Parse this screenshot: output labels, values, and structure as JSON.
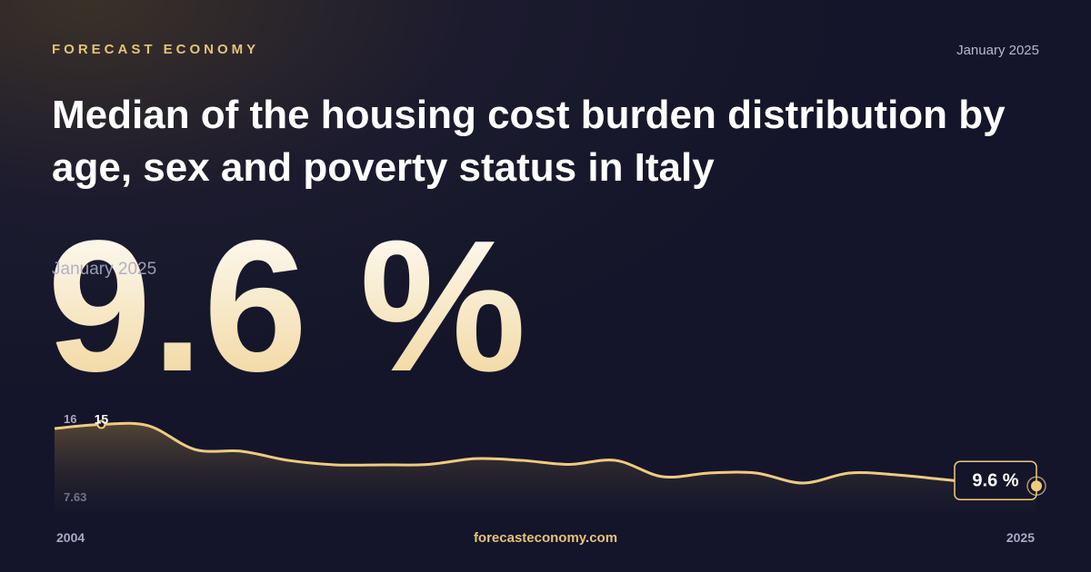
{
  "brand": "FORECAST ECONOMY",
  "date": "January 2025",
  "headline": "9.6 %",
  "footer": "forecasteconomy.com",
  "chart_data": {
    "type": "area",
    "title": "Median of the housing cost burden distribution by age, sex and poverty status in Italy",
    "x": [
      2004,
      2005,
      2006,
      2007,
      2008,
      2009,
      2010,
      2011,
      2012,
      2013,
      2014,
      2015,
      2016,
      2017,
      2018,
      2019,
      2020,
      2021,
      2022,
      2023,
      2024,
      2025
    ],
    "values": [
      14.65,
      15,
      14.9,
      12.81,
      12.65,
      11.85,
      11.46,
      11.46,
      11.5,
      12.0,
      11.85,
      11.5,
      11.85,
      10.42,
      10.74,
      10.74,
      9.86,
      10.74,
      10.58,
      10.18,
      9.78,
      9.6
    ],
    "value_labels": [
      null,
      "15",
      null,
      null,
      null,
      null,
      null,
      null,
      null,
      null,
      null,
      null,
      null,
      null,
      null,
      null,
      null,
      null,
      null,
      null,
      null,
      "9.6 %"
    ],
    "color": "#eecb80",
    "xlim": [
      2004,
      2025
    ],
    "xticks": [
      2004,
      2025
    ],
    "ylim": [
      7.63,
      16
    ],
    "yticks": [
      7.63,
      16
    ]
  }
}
